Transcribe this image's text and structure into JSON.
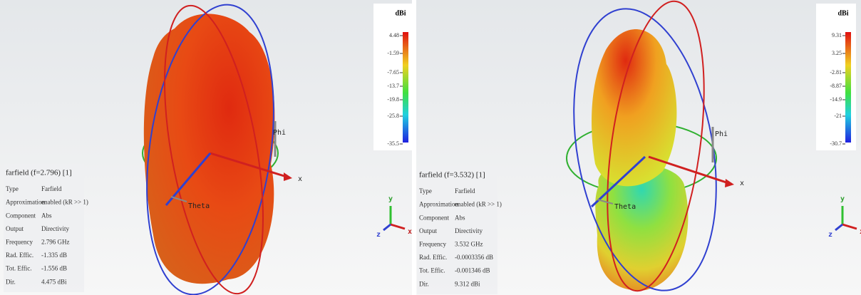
{
  "panels": [
    {
      "info": {
        "title": "farfield (f=2.796) [1]",
        "rows": [
          [
            "Type",
            "Farfield"
          ],
          [
            "Approximation",
            "enabled (kR >> 1)"
          ],
          [
            "Component",
            "Abs"
          ],
          [
            "Output",
            "Directivity"
          ],
          [
            "Frequency",
            "2.796 GHz"
          ],
          [
            "Rad. Effic.",
            "-1.335 dB"
          ],
          [
            "Tot. Effic.",
            "-1.556 dB"
          ],
          [
            "Dir.",
            "4.475 dBi"
          ]
        ]
      },
      "colorbar": {
        "unit": "dBi",
        "ticks": [
          "4.48",
          "-1.59",
          "-7.65",
          "-13.7",
          "-19.8",
          "-25.8",
          "-35.5"
        ]
      },
      "axis_labels": {
        "phi": "Phi",
        "theta": "Theta",
        "x": "x"
      },
      "triad_labels": {
        "y": "y",
        "x": "x",
        "z": "z"
      }
    },
    {
      "info": {
        "title": "farfield (f=3.532) [1]",
        "rows": [
          [
            "Type",
            "Farfield"
          ],
          [
            "Approximation",
            "enabled (kR >> 1)"
          ],
          [
            "Component",
            "Abs"
          ],
          [
            "Output",
            "Directivity"
          ],
          [
            "Frequency",
            "3.532 GHz"
          ],
          [
            "Rad. Effic.",
            "-0.0003356 dB"
          ],
          [
            "Tot. Effic.",
            "-0.001346 dB"
          ],
          [
            "Dir.",
            "9.312 dBi"
          ]
        ]
      },
      "colorbar": {
        "unit": "dBi",
        "ticks": [
          "9.31",
          "3.25",
          "-2.81",
          "-8.87",
          "-14.9",
          "-21",
          "-30.7"
        ]
      },
      "axis_labels": {
        "phi": "Phi",
        "theta": "Theta",
        "x": "x"
      },
      "triad_labels": {
        "y": "y",
        "x": "x",
        "z": "z"
      }
    }
  ]
}
